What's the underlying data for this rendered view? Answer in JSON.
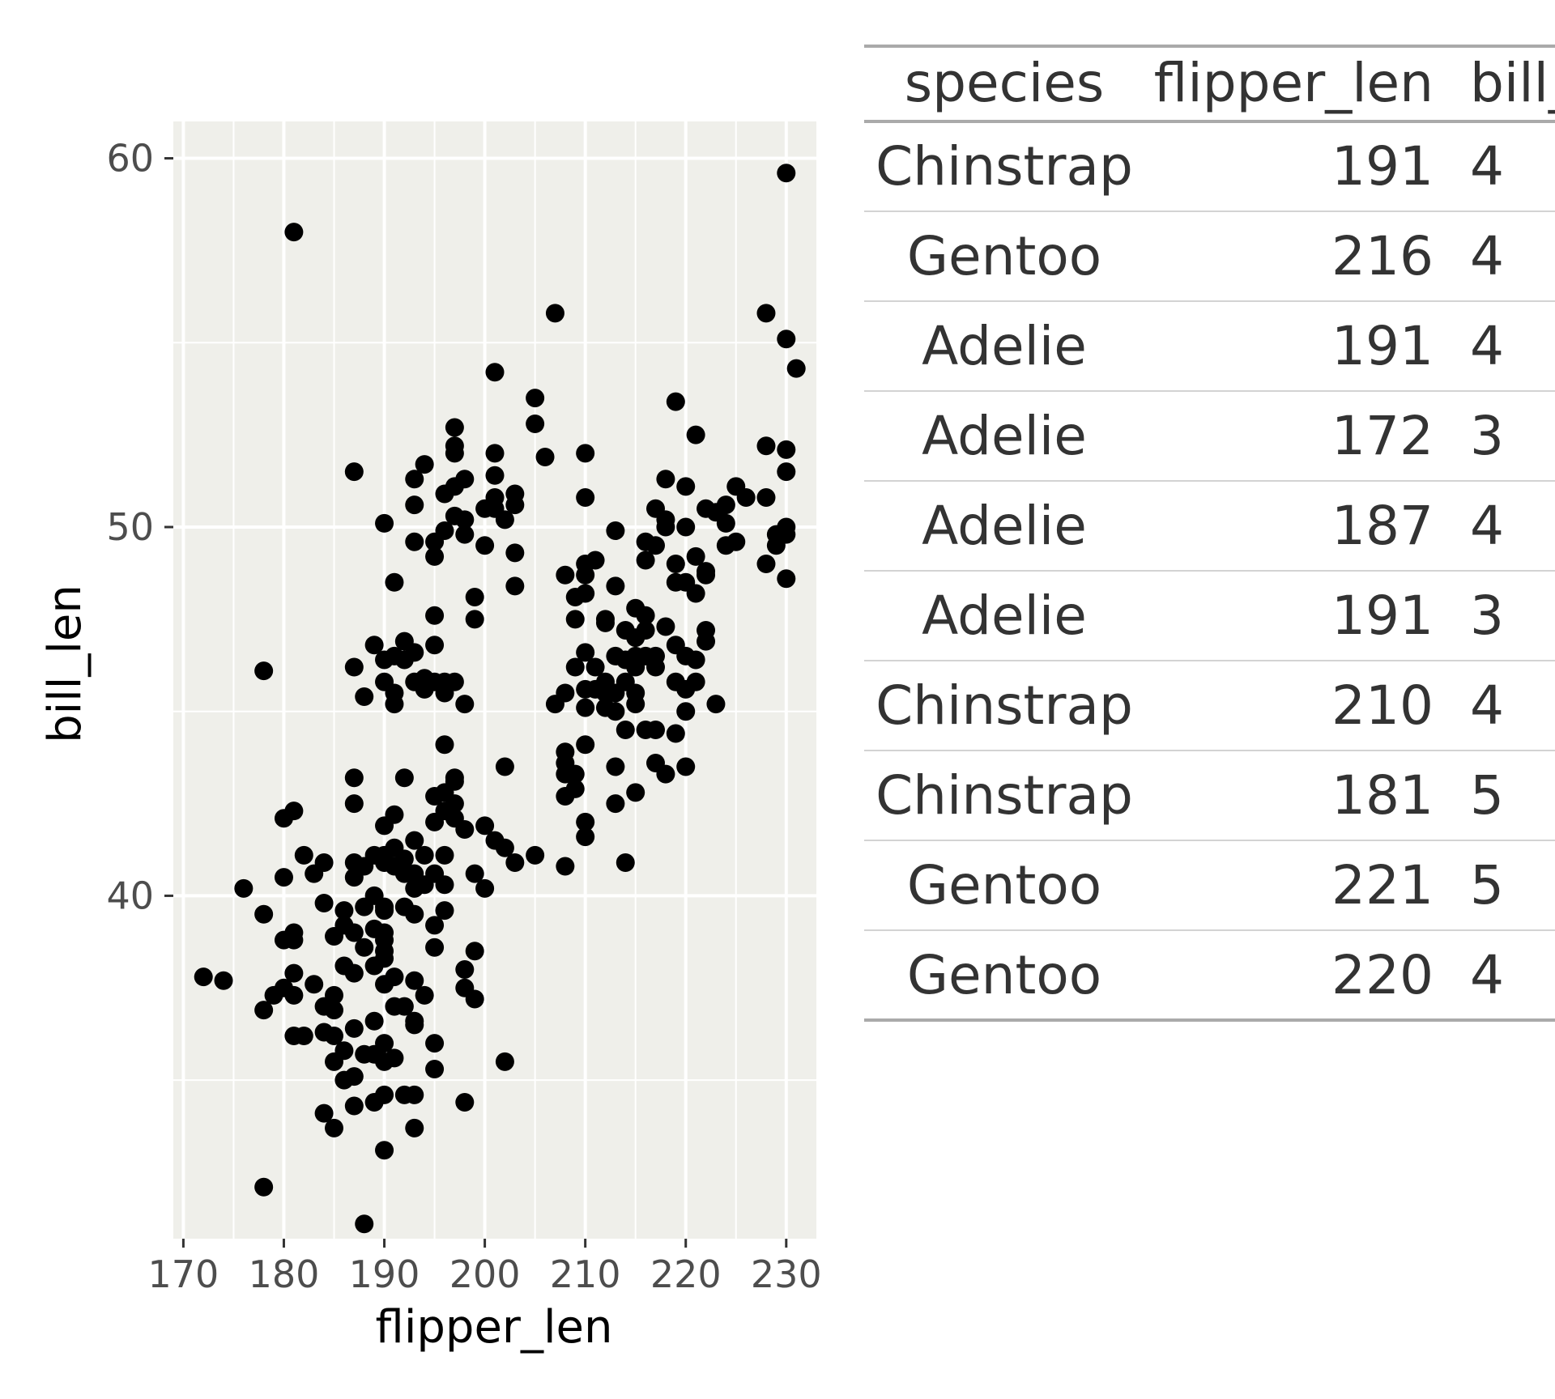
{
  "colors": {
    "panel_background": "#efefea",
    "grid": "#ffffff",
    "point": "#000000",
    "table_text": "#333333",
    "table_rule": "#aaaaaa",
    "table_row_line": "#d3d3d3"
  },
  "chart_data": {
    "type": "scatter",
    "title": "",
    "xlabel": "flipper_len",
    "ylabel": "bill_len",
    "xlim": [
      169,
      233
    ],
    "ylim": [
      30.7,
      61
    ],
    "x_ticks": [
      170,
      180,
      190,
      200,
      210,
      220,
      230
    ],
    "x_tick_labels": [
      "170",
      "180",
      "190",
      "200",
      "210",
      "220",
      "230"
    ],
    "y_ticks": [
      40,
      50,
      60
    ],
    "y_tick_labels": [
      "40",
      "50",
      "60"
    ],
    "grid": true,
    "legend": "none",
    "points": [
      [
        181,
        58.0
      ],
      [
        230,
        59.6
      ],
      [
        228,
        55.8
      ],
      [
        207,
        55.8
      ],
      [
        230,
        55.1
      ],
      [
        231,
        54.3
      ],
      [
        201,
        54.2
      ],
      [
        205,
        53.5
      ],
      [
        219,
        53.4
      ],
      [
        205,
        52.8
      ],
      [
        197,
        52.7
      ],
      [
        221,
        52.5
      ],
      [
        197,
        52.2
      ],
      [
        228,
        52.2
      ],
      [
        230,
        52.1
      ],
      [
        201,
        52.0
      ],
      [
        210,
        52.0
      ],
      [
        197,
        52.0
      ],
      [
        206,
        51.9
      ],
      [
        194,
        51.7
      ],
      [
        187,
        51.5
      ],
      [
        201,
        51.4
      ],
      [
        230,
        51.5
      ],
      [
        193,
        51.3
      ],
      [
        198,
        51.3
      ],
      [
        218,
        51.3
      ],
      [
        197,
        51.1
      ],
      [
        220,
        51.1
      ],
      [
        225,
        51.1
      ],
      [
        196,
        50.9
      ],
      [
        203,
        50.9
      ],
      [
        210,
        50.8
      ],
      [
        201,
        50.8
      ],
      [
        226,
        50.8
      ],
      [
        228,
        50.8
      ],
      [
        224,
        50.6
      ],
      [
        203,
        50.6
      ],
      [
        193,
        50.6
      ],
      [
        217,
        50.5
      ],
      [
        222,
        50.5
      ],
      [
        200,
        50.5
      ],
      [
        201,
        50.5
      ],
      [
        223,
        50.4
      ],
      [
        198,
        50.2
      ],
      [
        202,
        50.2
      ],
      [
        197,
        50.3
      ],
      [
        218,
        50.2
      ],
      [
        190,
        50.1
      ],
      [
        218,
        50.0
      ],
      [
        224,
        50.1
      ],
      [
        220,
        50.0
      ],
      [
        230,
        50.0
      ],
      [
        196,
        49.9
      ],
      [
        213,
        49.9
      ],
      [
        198,
        49.8
      ],
      [
        229,
        49.8
      ],
      [
        230,
        49.8
      ],
      [
        195,
        49.6
      ],
      [
        193,
        49.6
      ],
      [
        216,
        49.6
      ],
      [
        225,
        49.6
      ],
      [
        224,
        49.5
      ],
      [
        200,
        49.5
      ],
      [
        217,
        49.5
      ],
      [
        229,
        49.5
      ],
      [
        203,
        49.3
      ],
      [
        221,
        49.2
      ],
      [
        211,
        49.1
      ],
      [
        216,
        49.1
      ],
      [
        219,
        49.0
      ],
      [
        195,
        49.2
      ],
      [
        210,
        49.0
      ],
      [
        228,
        49.0
      ],
      [
        222,
        48.8
      ],
      [
        222,
        48.7
      ],
      [
        210,
        48.7
      ],
      [
        208,
        48.7
      ],
      [
        230,
        48.6
      ],
      [
        191,
        48.5
      ],
      [
        213,
        48.4
      ],
      [
        203,
        48.4
      ],
      [
        220,
        48.5
      ],
      [
        219,
        48.5
      ],
      [
        221,
        48.2
      ],
      [
        210,
        48.2
      ],
      [
        209,
        48.1
      ],
      [
        199,
        48.1
      ],
      [
        215,
        47.8
      ],
      [
        216,
        47.6
      ],
      [
        195,
        47.6
      ],
      [
        199,
        47.5
      ],
      [
        209,
        47.5
      ],
      [
        212,
        47.5
      ],
      [
        212,
        47.4
      ],
      [
        218,
        47.3
      ],
      [
        222,
        47.2
      ],
      [
        214,
        47.2
      ],
      [
        216,
        47.2
      ],
      [
        215,
        47.0
      ],
      [
        222,
        46.9
      ],
      [
        192,
        46.9
      ],
      [
        189,
        46.8
      ],
      [
        195,
        46.8
      ],
      [
        193,
        46.6
      ],
      [
        219,
        46.8
      ],
      [
        213,
        46.5
      ],
      [
        210,
        46.6
      ],
      [
        215,
        46.5
      ],
      [
        216,
        46.5
      ],
      [
        217,
        46.5
      ],
      [
        220,
        46.5
      ],
      [
        221,
        46.4
      ],
      [
        214,
        46.4
      ],
      [
        217,
        46.2
      ],
      [
        215,
        46.2
      ],
      [
        209,
        46.2
      ],
      [
        211,
        46.2
      ],
      [
        191,
        46.5
      ],
      [
        190,
        46.4
      ],
      [
        192,
        46.4
      ],
      [
        187,
        46.2
      ],
      [
        178,
        46.1
      ],
      [
        190,
        45.8
      ],
      [
        194,
        45.9
      ],
      [
        196,
        45.8
      ],
      [
        197,
        45.8
      ],
      [
        212,
        45.8
      ],
      [
        219,
        45.8
      ],
      [
        221,
        45.8
      ],
      [
        195,
        45.8
      ],
      [
        191,
        45.5
      ],
      [
        215,
        45.5
      ],
      [
        193,
        45.8
      ],
      [
        214,
        45.8
      ],
      [
        220,
        45.6
      ],
      [
        210,
        45.6
      ],
      [
        211,
        45.6
      ],
      [
        212,
        45.5
      ],
      [
        208,
        45.5
      ],
      [
        213,
        45.5
      ],
      [
        188,
        45.4
      ],
      [
        196,
        45.5
      ],
      [
        194,
        45.6
      ],
      [
        207,
        45.2
      ],
      [
        215,
        45.2
      ],
      [
        210,
        45.1
      ],
      [
        191,
        45.2
      ],
      [
        198,
        45.2
      ],
      [
        212,
        45.1
      ],
      [
        220,
        45.0
      ],
      [
        223,
        45.2
      ],
      [
        213,
        45.0
      ],
      [
        214,
        44.5
      ],
      [
        216,
        44.5
      ],
      [
        217,
        44.5
      ],
      [
        219,
        44.4
      ],
      [
        210,
        44.1
      ],
      [
        196,
        44.1
      ],
      [
        208,
        43.9
      ],
      [
        208,
        43.6
      ],
      [
        220,
        43.5
      ],
      [
        217,
        43.6
      ],
      [
        218,
        43.3
      ],
      [
        213,
        43.5
      ],
      [
        202,
        43.5
      ],
      [
        197,
        43.2
      ],
      [
        208,
        43.3
      ],
      [
        209,
        43.3
      ],
      [
        197,
        43.1
      ],
      [
        192,
        43.2
      ],
      [
        187,
        43.2
      ],
      [
        215,
        42.8
      ],
      [
        209,
        42.9
      ],
      [
        208,
        42.7
      ],
      [
        195,
        42.7
      ],
      [
        196,
        42.8
      ],
      [
        197,
        42.5
      ],
      [
        187,
        42.5
      ],
      [
        213,
        42.5
      ],
      [
        196,
        42.3
      ],
      [
        181,
        42.3
      ],
      [
        191,
        42.2
      ],
      [
        180,
        42.1
      ],
      [
        197,
        42.1
      ],
      [
        195,
        42.0
      ],
      [
        210,
        42.0
      ],
      [
        190,
        41.9
      ],
      [
        200,
        41.9
      ],
      [
        198,
        41.8
      ],
      [
        210,
        41.6
      ],
      [
        193,
        41.5
      ],
      [
        201,
        41.5
      ],
      [
        191,
        41.3
      ],
      [
        202,
        41.3
      ],
      [
        190,
        41.1
      ],
      [
        194,
        41.1
      ],
      [
        196,
        41.1
      ],
      [
        192,
        41.0
      ],
      [
        189,
        41.1
      ],
      [
        205,
        41.1
      ],
      [
        182,
        41.1
      ],
      [
        184,
        40.9
      ],
      [
        187,
        40.9
      ],
      [
        190,
        40.9
      ],
      [
        203,
        40.9
      ],
      [
        214,
        40.9
      ],
      [
        188,
        40.8
      ],
      [
        208,
        40.8
      ],
      [
        191,
        40.8
      ],
      [
        192,
        40.6
      ],
      [
        193,
        40.6
      ],
      [
        195,
        40.6
      ],
      [
        199,
        40.6
      ],
      [
        183,
        40.6
      ],
      [
        187,
        40.5
      ],
      [
        180,
        40.5
      ],
      [
        196,
        40.3
      ],
      [
        176,
        40.2
      ],
      [
        193,
        40.2
      ],
      [
        200,
        40.2
      ],
      [
        194,
        40.3
      ],
      [
        189,
        40.0
      ],
      [
        184,
        39.8
      ],
      [
        190,
        39.7
      ],
      [
        186,
        39.6
      ],
      [
        188,
        39.7
      ],
      [
        192,
        39.7
      ],
      [
        196,
        39.6
      ],
      [
        178,
        39.5
      ],
      [
        190,
        39.6
      ],
      [
        193,
        39.5
      ],
      [
        195,
        39.2
      ],
      [
        186,
        39.2
      ],
      [
        181,
        39.0
      ],
      [
        187,
        39.0
      ],
      [
        189,
        39.1
      ],
      [
        190,
        39.0
      ],
      [
        180,
        38.8
      ],
      [
        185,
        38.9
      ],
      [
        190,
        38.8
      ],
      [
        181,
        38.8
      ],
      [
        195,
        38.6
      ],
      [
        188,
        38.6
      ],
      [
        199,
        38.5
      ],
      [
        190,
        38.5
      ],
      [
        190,
        38.3
      ],
      [
        189,
        38.1
      ],
      [
        186,
        38.1
      ],
      [
        198,
        38.0
      ],
      [
        181,
        37.9
      ],
      [
        187,
        37.9
      ],
      [
        191,
        37.8
      ],
      [
        172,
        37.8
      ],
      [
        174,
        37.7
      ],
      [
        193,
        37.7
      ],
      [
        183,
        37.6
      ],
      [
        198,
        37.5
      ],
      [
        180,
        37.5
      ],
      [
        190,
        37.6
      ],
      [
        181,
        37.3
      ],
      [
        185,
        37.3
      ],
      [
        194,
        37.3
      ],
      [
        179,
        37.3
      ],
      [
        199,
        37.2
      ],
      [
        184,
        37.0
      ],
      [
        191,
        37.0
      ],
      [
        192,
        37.0
      ],
      [
        178,
        36.9
      ],
      [
        185,
        36.9
      ],
      [
        189,
        36.6
      ],
      [
        193,
        36.6
      ],
      [
        193,
        36.5
      ],
      [
        187,
        36.4
      ],
      [
        184,
        36.3
      ],
      [
        182,
        36.2
      ],
      [
        181,
        36.2
      ],
      [
        185,
        36.2
      ],
      [
        195,
        36.0
      ],
      [
        190,
        36.0
      ],
      [
        186,
        35.8
      ],
      [
        188,
        35.7
      ],
      [
        189,
        35.7
      ],
      [
        191,
        35.6
      ],
      [
        190,
        35.5
      ],
      [
        185,
        35.5
      ],
      [
        202,
        35.5
      ],
      [
        195,
        35.3
      ],
      [
        187,
        35.1
      ],
      [
        186,
        35.0
      ],
      [
        190,
        34.6
      ],
      [
        192,
        34.6
      ],
      [
        193,
        34.6
      ],
      [
        189,
        34.4
      ],
      [
        198,
        34.4
      ],
      [
        187,
        34.3
      ],
      [
        184,
        34.1
      ],
      [
        185,
        33.7
      ],
      [
        193,
        33.7
      ],
      [
        190,
        33.1
      ],
      [
        178,
        32.1
      ],
      [
        188,
        31.1
      ]
    ]
  },
  "table": {
    "columns": [
      "species",
      "flipper_len",
      "bill_"
    ],
    "rows": [
      [
        "Chinstrap",
        "191",
        "4"
      ],
      [
        "Gentoo",
        "216",
        "4"
      ],
      [
        "Adelie",
        "191",
        "4"
      ],
      [
        "Adelie",
        "172",
        "3"
      ],
      [
        "Adelie",
        "187",
        "4"
      ],
      [
        "Adelie",
        "191",
        "3"
      ],
      [
        "Chinstrap",
        "210",
        "4"
      ],
      [
        "Chinstrap",
        "181",
        "5"
      ],
      [
        "Gentoo",
        "221",
        "5"
      ],
      [
        "Gentoo",
        "220",
        "4"
      ]
    ]
  }
}
